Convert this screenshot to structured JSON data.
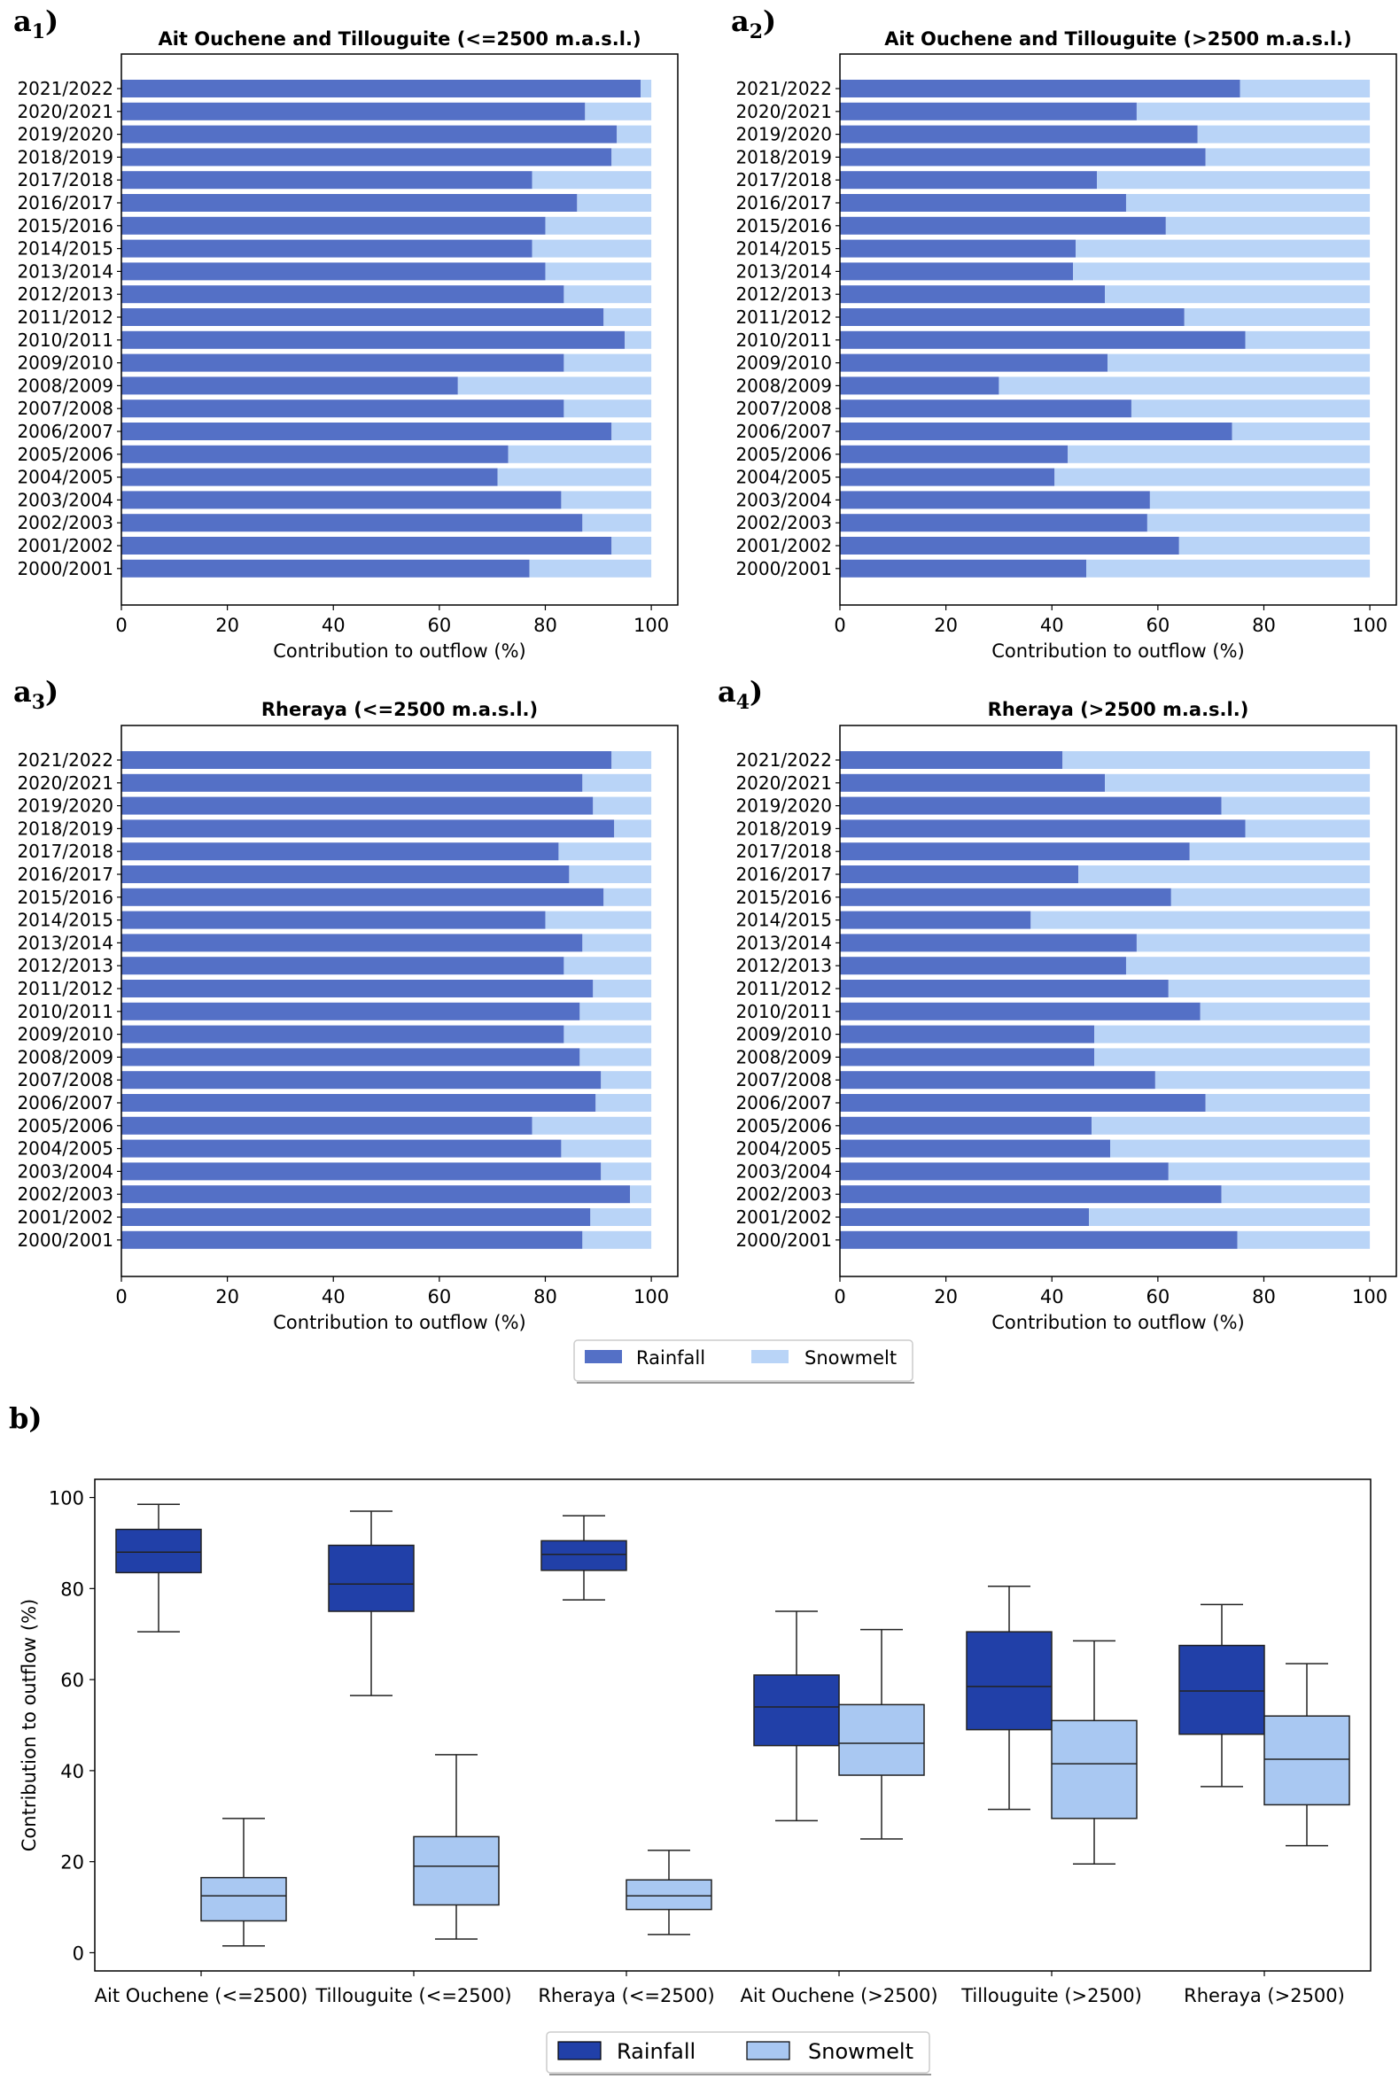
{
  "figure_labels": {
    "a1": {
      "main": "a",
      "sub": "1",
      "close": ")"
    },
    "a2": {
      "main": "a",
      "sub": "2",
      "close": ")"
    },
    "a3": {
      "main": "a",
      "sub": "3",
      "close": ")"
    },
    "a4": {
      "main": "a",
      "sub": "4",
      "close": ")"
    },
    "b": "b)"
  },
  "colors": {
    "rainfall_bar": "#5470c6",
    "snowmelt_bar": "#b9d4f7",
    "rainfall_box": "#2140a8",
    "snowmelt_box": "#a9c8f2",
    "axis": "#000000"
  },
  "legend_a": {
    "rainfall": "Rainfall",
    "snowmelt": "Snowmelt"
  },
  "legend_b": {
    "rainfall": "Rainfall",
    "snowmelt": "Snowmelt"
  },
  "chart_data": [
    {
      "id": "a1",
      "type": "bar",
      "orientation": "horizontal",
      "stacked": true,
      "title": "Ait Ouchene and Tillouguite (<=2500 m.a.s.l.)",
      "xlabel": "Contribution to outflow (%)",
      "ylabel": "",
      "xlim": [
        0,
        105
      ],
      "xticks": [
        "0",
        "20",
        "40",
        "60",
        "80",
        "100"
      ],
      "categories": [
        "2021/2022",
        "2020/2021",
        "2019/2020",
        "2018/2019",
        "2017/2018",
        "2016/2017",
        "2015/2016",
        "2014/2015",
        "2013/2014",
        "2012/2013",
        "2011/2012",
        "2010/2011",
        "2009/2010",
        "2008/2009",
        "2007/2008",
        "2006/2007",
        "2005/2006",
        "2004/2005",
        "2003/2004",
        "2002/2003",
        "2001/2002",
        "2000/2001"
      ],
      "series": [
        {
          "name": "Rainfall",
          "values": [
            98,
            87.5,
            93.5,
            92.5,
            77.5,
            86,
            80,
            77.5,
            80,
            83.5,
            91,
            95,
            83.5,
            63.5,
            83.5,
            92.5,
            73,
            71,
            83,
            87,
            92.5,
            77
          ]
        },
        {
          "name": "Snowmelt",
          "values": [
            2,
            12.5,
            6.5,
            7.5,
            22.5,
            14,
            20,
            22.5,
            20,
            16.5,
            9,
            5,
            16.5,
            36.5,
            16.5,
            7.5,
            27,
            29,
            17,
            13,
            7.5,
            23
          ]
        }
      ]
    },
    {
      "id": "a2",
      "type": "bar",
      "orientation": "horizontal",
      "stacked": true,
      "title": "Ait Ouchene and Tillouguite (>2500 m.a.s.l.)",
      "xlabel": "Contribution to outflow (%)",
      "ylabel": "",
      "xlim": [
        0,
        105
      ],
      "xticks": [
        "0",
        "20",
        "40",
        "60",
        "80",
        "100"
      ],
      "categories": [
        "2021/2022",
        "2020/2021",
        "2019/2020",
        "2018/2019",
        "2017/2018",
        "2016/2017",
        "2015/2016",
        "2014/2015",
        "2013/2014",
        "2012/2013",
        "2011/2012",
        "2010/2011",
        "2009/2010",
        "2008/2009",
        "2007/2008",
        "2006/2007",
        "2005/2006",
        "2004/2005",
        "2003/2004",
        "2002/2003",
        "2001/2002",
        "2000/2001"
      ],
      "series": [
        {
          "name": "Rainfall",
          "values": [
            75.5,
            56,
            67.5,
            69,
            48.5,
            54,
            61.5,
            44.5,
            44,
            50,
            65,
            76.5,
            50.5,
            30,
            55,
            74,
            43,
            40.5,
            58.5,
            58,
            64,
            46.5
          ]
        },
        {
          "name": "Snowmelt",
          "values": [
            24.5,
            44,
            32.5,
            31,
            51.5,
            46,
            38.5,
            55.5,
            56,
            50,
            35,
            23.5,
            49.5,
            70,
            45,
            26,
            57,
            59.5,
            41.5,
            42,
            36,
            53.5
          ]
        }
      ]
    },
    {
      "id": "a3",
      "type": "bar",
      "orientation": "horizontal",
      "stacked": true,
      "title": "Rheraya (<=2500 m.a.s.l.)",
      "xlabel": "Contribution to outflow (%)",
      "ylabel": "",
      "xlim": [
        0,
        105
      ],
      "xticks": [
        "0",
        "20",
        "40",
        "60",
        "80",
        "100"
      ],
      "categories": [
        "2021/2022",
        "2020/2021",
        "2019/2020",
        "2018/2019",
        "2017/2018",
        "2016/2017",
        "2015/2016",
        "2014/2015",
        "2013/2014",
        "2012/2013",
        "2011/2012",
        "2010/2011",
        "2009/2010",
        "2008/2009",
        "2007/2008",
        "2006/2007",
        "2005/2006",
        "2004/2005",
        "2003/2004",
        "2002/2003",
        "2001/2002",
        "2000/2001"
      ],
      "series": [
        {
          "name": "Rainfall",
          "values": [
            92.5,
            87,
            89,
            93,
            82.5,
            84.5,
            91,
            80,
            87,
            83.5,
            89,
            86.5,
            83.5,
            86.5,
            90.5,
            89.5,
            77.5,
            83,
            90.5,
            96,
            88.5,
            87
          ]
        },
        {
          "name": "Snowmelt",
          "values": [
            7.5,
            13,
            11,
            7,
            17.5,
            15.5,
            9,
            20,
            13,
            16.5,
            11,
            13.5,
            16.5,
            13.5,
            9.5,
            10.5,
            22.5,
            17,
            9.5,
            4,
            11.5,
            13
          ]
        }
      ]
    },
    {
      "id": "a4",
      "type": "bar",
      "orientation": "horizontal",
      "stacked": true,
      "title": "Rheraya (>2500 m.a.s.l.)",
      "xlabel": "Contribution to outflow (%)",
      "ylabel": "",
      "xlim": [
        0,
        105
      ],
      "xticks": [
        "0",
        "20",
        "40",
        "60",
        "80",
        "100"
      ],
      "categories": [
        "2021/2022",
        "2020/2021",
        "2019/2020",
        "2018/2019",
        "2017/2018",
        "2016/2017",
        "2015/2016",
        "2014/2015",
        "2013/2014",
        "2012/2013",
        "2011/2012",
        "2010/2011",
        "2009/2010",
        "2008/2009",
        "2007/2008",
        "2006/2007",
        "2005/2006",
        "2004/2005",
        "2003/2004",
        "2002/2003",
        "2001/2002",
        "2000/2001"
      ],
      "series": [
        {
          "name": "Rainfall",
          "values": [
            42,
            50,
            72,
            76.5,
            66,
            45,
            62.5,
            36,
            56,
            54,
            62,
            68,
            48,
            48,
            59.5,
            69,
            47.5,
            51,
            62,
            72,
            47,
            75
          ]
        },
        {
          "name": "Snowmelt",
          "values": [
            58,
            50,
            28,
            23.5,
            34,
            55,
            37.5,
            64,
            44,
            46,
            38,
            32,
            52,
            52,
            40.5,
            31,
            52.5,
            49,
            38,
            28,
            53,
            25
          ]
        }
      ]
    },
    {
      "id": "b",
      "type": "box",
      "title": "",
      "xlabel": "",
      "ylabel": "Contribution to outflow (%)",
      "ylim": [
        -4,
        104
      ],
      "yticks": [
        "0",
        "20",
        "40",
        "60",
        "80",
        "100"
      ],
      "categories": [
        "Ait Ouchene (<=2500)",
        "Tillouguite (<=2500)",
        "Rheraya (<=2500)",
        "Ait Ouchene (>2500)",
        "Tillouguite (>2500)",
        "Rheraya (>2500)"
      ],
      "series": [
        {
          "name": "Rainfall",
          "boxes": [
            {
              "min": 70.5,
              "q1": 83.5,
              "median": 88,
              "q3": 93,
              "max": 98.5
            },
            {
              "min": 56.5,
              "q1": 75,
              "median": 81,
              "q3": 89.5,
              "max": 97
            },
            {
              "min": 77.5,
              "q1": 84,
              "median": 87.5,
              "q3": 90.5,
              "max": 96
            },
            {
              "min": 29,
              "q1": 45.5,
              "median": 54,
              "q3": 61,
              "max": 75
            },
            {
              "min": 31.5,
              "q1": 49,
              "median": 58.5,
              "q3": 70.5,
              "max": 80.5
            },
            {
              "min": 36.5,
              "q1": 48,
              "median": 57.5,
              "q3": 67.5,
              "max": 76.5
            }
          ]
        },
        {
          "name": "Snowmelt",
          "boxes": [
            {
              "min": 1.5,
              "q1": 7,
              "median": 12.5,
              "q3": 16.5,
              "max": 29.5
            },
            {
              "min": 3,
              "q1": 10.5,
              "median": 19,
              "q3": 25.5,
              "max": 43.5
            },
            {
              "min": 4,
              "q1": 9.5,
              "median": 12.5,
              "q3": 16,
              "max": 22.5
            },
            {
              "min": 25,
              "q1": 39,
              "median": 46,
              "q3": 54.5,
              "max": 71
            },
            {
              "min": 19.5,
              "q1": 29.5,
              "median": 41.5,
              "q3": 51,
              "max": 68.5
            },
            {
              "min": 23.5,
              "q1": 32.5,
              "median": 42.5,
              "q3": 52,
              "max": 63.5
            }
          ]
        }
      ]
    }
  ]
}
